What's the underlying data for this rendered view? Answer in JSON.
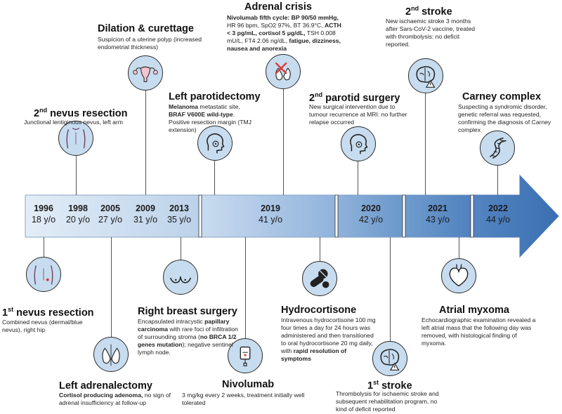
{
  "timeline": {
    "segments": [
      {
        "years": [
          "1996",
          "1998",
          "2005",
          "2009",
          "2013"
        ],
        "ages": [
          "18 y/o",
          "20 y/o",
          "27 y/o",
          "31 y/o",
          "35 y/o"
        ]
      },
      {
        "years": [
          "2019"
        ],
        "ages": [
          "41 y/o"
        ]
      },
      {
        "years": [
          "2020"
        ],
        "ages": [
          "42 y/o"
        ]
      },
      {
        "years": [
          "2021"
        ],
        "ages": [
          "43 y/o"
        ]
      },
      {
        "years": [
          "2022"
        ],
        "ages": [
          "44 y/o"
        ]
      }
    ],
    "colors": {
      "band_light": "#dbe7f4",
      "band_dark": "#3d72b4",
      "icon_fill": "#c7dcef"
    }
  },
  "events": {
    "nevus1": {
      "title_num": "1",
      "title_sup": "st",
      "title_rest": " nevus resection",
      "desc": "Combined nevus (dermal/blue nevus), right hip",
      "icon": "back-skin-icon"
    },
    "nevus2": {
      "title_num": "2",
      "title_sup": "nd",
      "title_rest": " nevus resection",
      "desc": "Junctional lentiginous nevus, left arm",
      "icon": "back-skin-icon"
    },
    "adrenalectomy": {
      "title": "Left adrenalectomy",
      "desc_bold": "Cortisol producing adenoma,",
      "desc_rest": " no sign of adrenal insufficiency at follow-up",
      "icon": "kidney-adrenal-icon"
    },
    "dilation": {
      "title": "Dilation & curettage",
      "desc": "Suspicion of a uterine polyp (increased endometrial thickness)",
      "icon": "uterus-icon"
    },
    "breast": {
      "title": "Right breast surgery",
      "desc_a": "Encapsulated intracystic ",
      "desc_b_bold": "papillary carcinoma",
      "desc_c": " with rare foci of infiltration of surrounding stroma (",
      "desc_d_bold": "no BRCA 1/2 genes mutation",
      "desc_e": "); negative sentinel lymph node.",
      "icon": "breast-icon"
    },
    "parotidectomy": {
      "title": "Left parotidectomy",
      "desc_a_bold": "Melanoma",
      "desc_b": " metastatic site, ",
      "desc_c_bold": "BRAF V600E wild-type",
      "desc_d": ". Positive resection margin (TMJ extension)",
      "icon": "head-parotid-icon"
    },
    "nivolumab": {
      "title": "Nivolumab",
      "desc": "3 mg/kg every 2 weeks, treatment initially well tolerated",
      "icon": "iv-bag-icon"
    },
    "adrenal_crisis": {
      "title": "Adrenal crisis",
      "desc_a_bold": "Nivolumab fifth cycle: BP 90/50 mmHg,",
      "desc_b": " HR 96 bpm, SpO2 97%, BT 36.9°C, ",
      "desc_c_bold": "ACTH < 3 pg/mL, cortisol 5 μg/dL,",
      "desc_d": " TSH 0.008 mU/L, FT4 2.06 ng/dL, ",
      "desc_e_bold": "fatigue, dizziness, nausea and anorexia",
      "icon": "adrenal-crossed-icon"
    },
    "hydrocortisone": {
      "title": "Hydrocortisone",
      "desc_a": "Intravenous hydrocortisone 100 mg four times a day for 24 hours was administered and then transitioned to oral hydrocortisone 20 mg daily, with ",
      "desc_b_bold": "rapid resolution of symptoms",
      "icon": "pills-icon"
    },
    "parotid2": {
      "title_num": "2",
      "title_sup": "nd",
      "title_rest": " parotid surgery",
      "desc": "New surgical intervention due to tumour recurrence at MRI: no further relapse occurred",
      "icon": "head-parotid-icon"
    },
    "stroke1": {
      "title_num": "1",
      "title_sup": "st",
      "title_rest": " stroke",
      "desc": "Thrombolysis for ischaemic stroke and subsequent rehabilitation program, no kind of deficit reported",
      "icon": "brain-warning-icon"
    },
    "stroke2": {
      "title_num": "2",
      "title_sup": "nd",
      "title_rest": " stroke",
      "desc": "New ischaemic stroke 3 months after Sars-CoV-2 vaccine, treated with thrombolysis: no deficit reported.",
      "icon": "brain-warning-icon"
    },
    "myxoma": {
      "title": "Atrial myxoma",
      "desc": "Echocardiographic examination revealed a left atrial mass that the following day was removed, with histological finding of myxoma.",
      "icon": "heart-icon"
    },
    "carney": {
      "title": "Carney complex",
      "desc": "Suspecting a syndromic disorder, genetic referral was requested, confirming the diagnosis of Carney complex",
      "icon": "dna-icon"
    }
  }
}
